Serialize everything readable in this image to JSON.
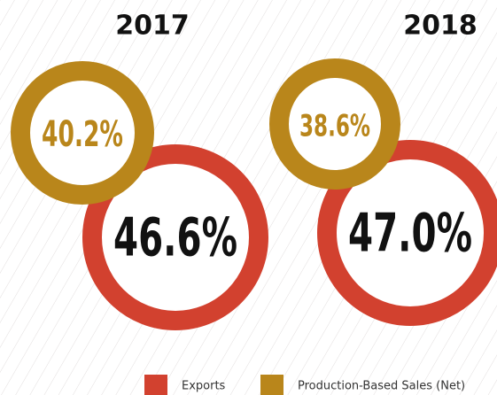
{
  "chart_data": {
    "type": "ring-pair",
    "categories": [
      "2017",
      "2018"
    ],
    "series": [
      {
        "name": "Exports",
        "color": "#d2412f",
        "values": [
          46.6,
          47.0
        ],
        "value_labels": [
          "46.6%",
          "47.0%"
        ]
      },
      {
        "name": "Production-Based Sales (Net)",
        "color": "#b9861b",
        "values": [
          40.2,
          38.6
        ],
        "value_labels": [
          "40.2%",
          "38.6%"
        ]
      }
    ]
  }
}
